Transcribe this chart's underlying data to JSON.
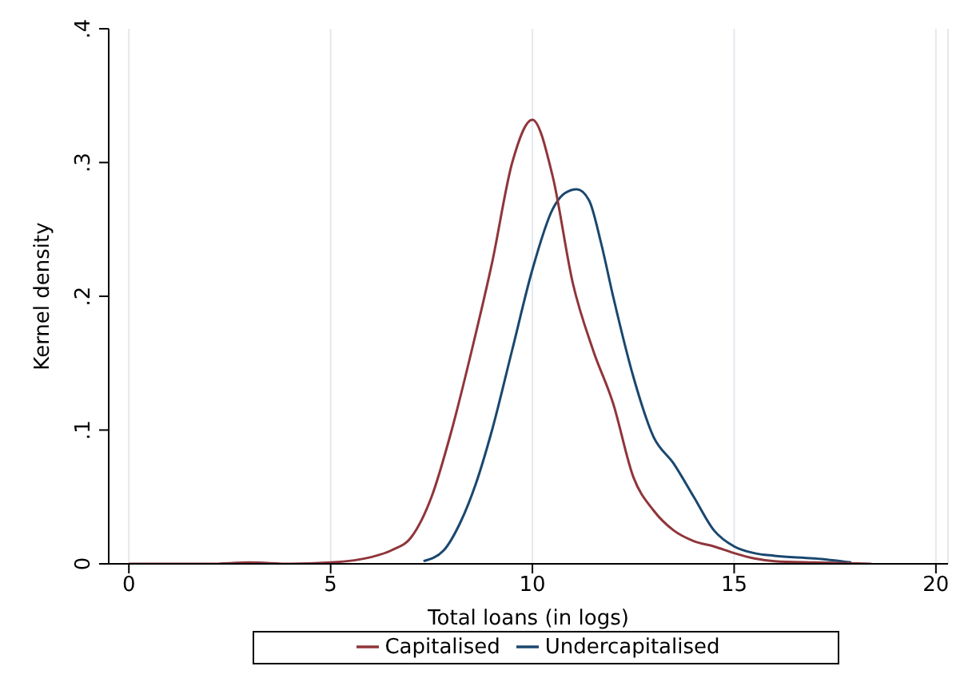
{
  "chart_data": {
    "type": "line",
    "xlabel": "Total loans (in logs)",
    "ylabel": "Kernel density",
    "xlim": [
      -0.5,
      20.3
    ],
    "xticks": [
      0,
      5,
      10,
      15,
      20
    ],
    "ylim": [
      0,
      0.4
    ],
    "yticks": [
      0,
      {
        "value": 0.1,
        "label": ".1"
      },
      {
        "value": 0.2,
        "label": ".2"
      },
      {
        "value": 0.3,
        "label": ".3"
      },
      {
        "value": 0.4,
        "label": ".4"
      }
    ],
    "grid": "x",
    "legend": "bottom",
    "series": [
      {
        "name": "Undercapitalised",
        "color": "#1a476f",
        "x": [
          7.3,
          7.8,
          8.2,
          8.6,
          9,
          9.5,
          10,
          10.5,
          10.8,
          11.1,
          11.4,
          11.7,
          12,
          12.5,
          13,
          13.5,
          14,
          14.5,
          15,
          15.5,
          16,
          17,
          17.9
        ],
        "values": [
          0.002,
          0.01,
          0.03,
          0.06,
          0.1,
          0.16,
          0.22,
          0.265,
          0.277,
          0.28,
          0.272,
          0.24,
          0.2,
          0.14,
          0.095,
          0.075,
          0.05,
          0.025,
          0.013,
          0.008,
          0.006,
          0.004,
          0.001
        ]
      },
      {
        "name": "Capitalised",
        "color": "#90353b",
        "x": [
          0,
          1,
          2,
          3,
          4,
          5,
          6,
          6.5,
          7,
          7.5,
          8,
          8.5,
          9,
          9.5,
          10,
          10.5,
          11,
          11.5,
          12,
          12.5,
          13,
          13.5,
          14,
          14.5,
          15,
          15.5,
          16,
          17,
          18.4
        ],
        "values": [
          0,
          0,
          0,
          0.001,
          0,
          0.001,
          0.005,
          0.01,
          0.02,
          0.05,
          0.1,
          0.16,
          0.225,
          0.3,
          0.332,
          0.29,
          0.21,
          0.16,
          0.12,
          0.065,
          0.04,
          0.025,
          0.017,
          0.013,
          0.008,
          0.004,
          0.002,
          0.001,
          0
        ]
      }
    ]
  }
}
